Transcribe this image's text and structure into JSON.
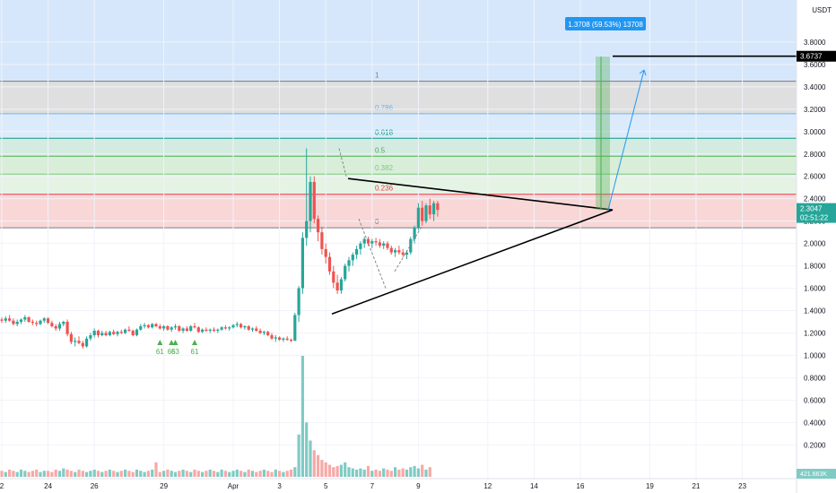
{
  "app": {
    "axis_unit": "USDT",
    "current_price_label": "2.3047",
    "countdown_label": "02:51:22",
    "target_price_label": "3.6737",
    "volume_label": "421.663K",
    "measure_label": "1.3708 (59.53%) 13708"
  },
  "colors": {
    "up": "#26a69a",
    "down": "#ef5350",
    "vol_up": "#80cbc4",
    "vol_down": "#f7a9a7",
    "price_tag": "#26a69a",
    "measure": "#2196f3"
  },
  "chart_data": {
    "type": "candlestick",
    "y_axis": {
      "unit": "USDT",
      "range": [
        0.05,
        4.0
      ],
      "ticks": [
        "0.2000",
        "0.4000",
        "0.6000",
        "0.8000",
        "1.0000",
        "1.2000",
        "1.4000",
        "1.6000",
        "1.8000",
        "2.0000",
        "2.2000",
        "2.4000",
        "2.6000",
        "2.8000",
        "3.0000",
        "3.2000",
        "3.4000",
        "3.6000",
        "3.8000"
      ]
    },
    "x_axis": {
      "ticks": [
        {
          "label": "2",
          "i": 0
        },
        {
          "label": "24",
          "i": 12
        },
        {
          "label": "26",
          "i": 24
        },
        {
          "label": "29",
          "i": 42
        },
        {
          "label": "Apr",
          "i": 60
        },
        {
          "label": "3",
          "i": 72
        },
        {
          "label": "5",
          "i": 84
        },
        {
          "label": "7",
          "i": 96
        },
        {
          "label": "9",
          "i": 108
        },
        {
          "label": "12",
          "i": 126
        },
        {
          "label": "14",
          "i": 138
        },
        {
          "label": "16",
          "i": 150
        },
        {
          "label": "19",
          "i": 168
        },
        {
          "label": "21",
          "i": 180
        },
        {
          "label": "23",
          "i": 192
        }
      ]
    },
    "fibonacci": [
      {
        "level": "1",
        "price": 3.45,
        "color": "#787b86",
        "fill": "#dcdcdc"
      },
      {
        "level": "0.786",
        "price": 3.16,
        "color": "#64b5f6",
        "fill": "#d8e9fb"
      },
      {
        "level": "0.618",
        "price": 2.94,
        "color": "#089981",
        "fill": "#cfe9df"
      },
      {
        "level": "0.5",
        "price": 2.78,
        "color": "#4caf50",
        "fill": "#d4ecd4"
      },
      {
        "level": "0.382",
        "price": 2.62,
        "color": "#81c784",
        "fill": "#e2f2e2"
      },
      {
        "level": "0.236",
        "price": 2.44,
        "color": "#f23645",
        "fill": "#f8d3d3"
      },
      {
        "level": "0",
        "price": 2.14,
        "color": "#787b86",
        "fill": "#f8d3d3"
      }
    ],
    "annotations": [
      {
        "text": "61",
        "i": 41
      },
      {
        "text": "65",
        "i": 44
      },
      {
        "text": "63",
        "i": 45
      },
      {
        "text": "61",
        "i": 50
      }
    ],
    "candles": [
      [
        1.32,
        1.34,
        1.29,
        1.31
      ],
      [
        1.31,
        1.35,
        1.29,
        1.33
      ],
      [
        1.33,
        1.36,
        1.3,
        1.31
      ],
      [
        1.31,
        1.33,
        1.27,
        1.28
      ],
      [
        1.28,
        1.32,
        1.26,
        1.3
      ],
      [
        1.3,
        1.33,
        1.28,
        1.32
      ],
      [
        1.32,
        1.36,
        1.3,
        1.34
      ],
      [
        1.34,
        1.35,
        1.29,
        1.3
      ],
      [
        1.3,
        1.32,
        1.27,
        1.29
      ],
      [
        1.29,
        1.31,
        1.26,
        1.28
      ],
      [
        1.28,
        1.32,
        1.27,
        1.31
      ],
      [
        1.31,
        1.34,
        1.29,
        1.33
      ],
      [
        1.33,
        1.34,
        1.28,
        1.29
      ],
      [
        1.29,
        1.31,
        1.25,
        1.26
      ],
      [
        1.26,
        1.28,
        1.22,
        1.24
      ],
      [
        1.24,
        1.3,
        1.22,
        1.28
      ],
      [
        1.28,
        1.31,
        1.26,
        1.3
      ],
      [
        1.3,
        1.32,
        1.17,
        1.19
      ],
      [
        1.19,
        1.21,
        1.1,
        1.12
      ],
      [
        1.12,
        1.16,
        1.08,
        1.13
      ],
      [
        1.13,
        1.17,
        1.1,
        1.11
      ],
      [
        1.11,
        1.13,
        1.06,
        1.08
      ],
      [
        1.08,
        1.17,
        1.07,
        1.15
      ],
      [
        1.15,
        1.2,
        1.13,
        1.18
      ],
      [
        1.18,
        1.24,
        1.16,
        1.22
      ],
      [
        1.22,
        1.23,
        1.16,
        1.18
      ],
      [
        1.18,
        1.22,
        1.17,
        1.2
      ],
      [
        1.2,
        1.22,
        1.17,
        1.18
      ],
      [
        1.18,
        1.22,
        1.17,
        1.21
      ],
      [
        1.21,
        1.23,
        1.18,
        1.19
      ],
      [
        1.19,
        1.22,
        1.17,
        1.21
      ],
      [
        1.21,
        1.23,
        1.19,
        1.2
      ],
      [
        1.2,
        1.24,
        1.19,
        1.23
      ],
      [
        1.23,
        1.26,
        1.21,
        1.22
      ],
      [
        1.22,
        1.23,
        1.17,
        1.18
      ],
      [
        1.18,
        1.24,
        1.17,
        1.23
      ],
      [
        1.23,
        1.28,
        1.22,
        1.26
      ],
      [
        1.26,
        1.29,
        1.24,
        1.27
      ],
      [
        1.27,
        1.28,
        1.24,
        1.25
      ],
      [
        1.25,
        1.29,
        1.24,
        1.28
      ],
      [
        1.28,
        1.29,
        1.25,
        1.26
      ],
      [
        1.26,
        1.28,
        1.23,
        1.24
      ],
      [
        1.24,
        1.27,
        1.22,
        1.26
      ],
      [
        1.26,
        1.27,
        1.22,
        1.23
      ],
      [
        1.23,
        1.26,
        1.21,
        1.25
      ],
      [
        1.25,
        1.28,
        1.23,
        1.26
      ],
      [
        1.26,
        1.27,
        1.21,
        1.22
      ],
      [
        1.22,
        1.25,
        1.2,
        1.24
      ],
      [
        1.24,
        1.26,
        1.21,
        1.22
      ],
      [
        1.22,
        1.27,
        1.21,
        1.26
      ],
      [
        1.26,
        1.29,
        1.24,
        1.25
      ],
      [
        1.25,
        1.26,
        1.2,
        1.21
      ],
      [
        1.21,
        1.24,
        1.2,
        1.23
      ],
      [
        1.23,
        1.25,
        1.21,
        1.22
      ],
      [
        1.22,
        1.24,
        1.2,
        1.23
      ],
      [
        1.23,
        1.25,
        1.21,
        1.22
      ],
      [
        1.22,
        1.24,
        1.2,
        1.23
      ],
      [
        1.23,
        1.26,
        1.22,
        1.25
      ],
      [
        1.25,
        1.27,
        1.23,
        1.24
      ],
      [
        1.24,
        1.26,
        1.22,
        1.25
      ],
      [
        1.25,
        1.28,
        1.24,
        1.27
      ],
      [
        1.27,
        1.3,
        1.25,
        1.28
      ],
      [
        1.28,
        1.29,
        1.24,
        1.25
      ],
      [
        1.25,
        1.27,
        1.23,
        1.26
      ],
      [
        1.26,
        1.27,
        1.22,
        1.23
      ],
      [
        1.23,
        1.25,
        1.21,
        1.24
      ],
      [
        1.24,
        1.26,
        1.21,
        1.22
      ],
      [
        1.22,
        1.24,
        1.19,
        1.2
      ],
      [
        1.2,
        1.22,
        1.18,
        1.21
      ],
      [
        1.21,
        1.22,
        1.17,
        1.18
      ],
      [
        1.18,
        1.2,
        1.14,
        1.15
      ],
      [
        1.15,
        1.18,
        1.12,
        1.16
      ],
      [
        1.16,
        1.17,
        1.13,
        1.14
      ],
      [
        1.14,
        1.16,
        1.12,
        1.15
      ],
      [
        1.15,
        1.17,
        1.13,
        1.14
      ],
      [
        1.14,
        1.15,
        1.12,
        1.13
      ],
      [
        1.13,
        1.38,
        1.13,
        1.36
      ],
      [
        1.36,
        1.62,
        1.3,
        1.6
      ],
      [
        1.6,
        2.1,
        1.55,
        2.05
      ],
      [
        2.05,
        2.85,
        1.98,
        2.2
      ],
      [
        2.2,
        2.6,
        2.1,
        2.55
      ],
      [
        2.55,
        2.6,
        2.18,
        2.22
      ],
      [
        2.22,
        2.25,
        2.02,
        2.1
      ],
      [
        2.1,
        2.15,
        1.9,
        1.95
      ],
      [
        1.95,
        2.0,
        1.82,
        1.88
      ],
      [
        1.88,
        1.92,
        1.72,
        1.75
      ],
      [
        1.75,
        1.8,
        1.6,
        1.65
      ],
      [
        1.65,
        1.72,
        1.55,
        1.58
      ],
      [
        1.58,
        1.7,
        1.55,
        1.68
      ],
      [
        1.68,
        1.82,
        1.66,
        1.8
      ],
      [
        1.8,
        1.88,
        1.75,
        1.85
      ],
      [
        1.85,
        1.92,
        1.8,
        1.9
      ],
      [
        1.9,
        1.98,
        1.86,
        1.95
      ],
      [
        1.95,
        2.02,
        1.9,
        2.0
      ],
      [
        2.0,
        2.06,
        1.96,
        2.04
      ],
      [
        2.04,
        2.06,
        1.98,
        2.0
      ],
      [
        2.0,
        2.04,
        1.96,
        2.02
      ],
      [
        2.02,
        2.05,
        1.98,
        2.01
      ],
      [
        2.01,
        2.04,
        1.96,
        1.98
      ],
      [
        1.98,
        2.02,
        1.95,
        2.0
      ],
      [
        2.0,
        2.02,
        1.94,
        1.96
      ],
      [
        1.96,
        1.98,
        1.9,
        1.92
      ],
      [
        1.92,
        1.96,
        1.88,
        1.94
      ],
      [
        1.94,
        1.98,
        1.9,
        1.92
      ],
      [
        1.92,
        1.95,
        1.88,
        1.9
      ],
      [
        1.9,
        1.94,
        1.86,
        1.92
      ],
      [
        1.92,
        2.06,
        1.9,
        2.04
      ],
      [
        2.04,
        2.16,
        2.0,
        2.14
      ],
      [
        2.14,
        2.36,
        2.12,
        2.32
      ],
      [
        2.32,
        2.38,
        2.16,
        2.2
      ],
      [
        2.2,
        2.36,
        2.18,
        2.34
      ],
      [
        2.34,
        2.4,
        2.22,
        2.26
      ],
      [
        2.26,
        2.38,
        2.2,
        2.36
      ],
      [
        2.36,
        2.38,
        2.24,
        2.3
      ]
    ],
    "volumes": [
      5,
      4,
      6,
      5,
      4,
      6,
      5,
      4,
      5,
      6,
      4,
      5,
      5,
      4,
      6,
      5,
      7,
      6,
      5,
      4,
      6,
      5,
      4,
      5,
      6,
      5,
      4,
      5,
      6,
      5,
      4,
      5,
      6,
      5,
      4,
      6,
      5,
      4,
      5,
      6,
      12,
      4,
      5,
      6,
      5,
      4,
      5,
      6,
      5,
      4,
      6,
      5,
      4,
      5,
      6,
      5,
      4,
      6,
      5,
      4,
      5,
      6,
      5,
      4,
      6,
      5,
      4,
      5,
      6,
      5,
      4,
      6,
      5,
      4,
      5,
      6,
      8,
      35,
      100,
      45,
      30,
      22,
      18,
      14,
      12,
      10,
      8,
      9,
      10,
      12,
      8,
      7,
      6,
      7,
      6,
      9,
      5,
      6,
      5,
      7,
      6,
      5,
      8,
      6,
      7,
      6,
      8,
      9,
      7,
      10,
      6,
      8
    ]
  }
}
